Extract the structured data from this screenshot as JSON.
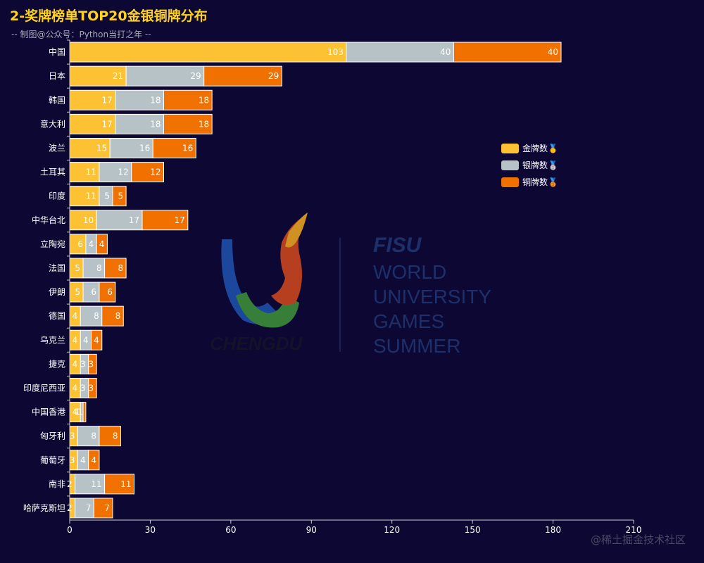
{
  "title": "2-奖牌榜单TOP20金银铜牌分布",
  "subtitle": "-- 制图@公众号：Python当打之年 --",
  "watermark_credit": "@稀土掘金技术社区",
  "background_logo": {
    "fisu": "FISU",
    "lines": [
      "WORLD",
      "UNIVERSITY",
      "GAMES",
      "SUMMER"
    ],
    "city": "CHENGDU"
  },
  "colors": {
    "gold": "#fcc233",
    "silver": "#b6c2c6",
    "bronze": "#f07000",
    "label_gold": "#ffffff"
  },
  "chart_data": {
    "type": "bar",
    "orientation": "horizontal",
    "stacked": true,
    "title": "2-奖牌榜单TOP20金银铜牌分布",
    "categories": [
      "中国",
      "日本",
      "韩国",
      "意大利",
      "波兰",
      "土耳其",
      "印度",
      "中华台北",
      "立陶宛",
      "法国",
      "伊朗",
      "德国",
      "乌克兰",
      "捷克",
      "印度尼西亚",
      "中国香港",
      "匈牙利",
      "葡萄牙",
      "南非",
      "哈萨克斯坦"
    ],
    "series": [
      {
        "name": "金牌数🥇",
        "values": [
          103,
          21,
          17,
          17,
          15,
          11,
          11,
          10,
          6,
          5,
          5,
          4,
          4,
          4,
          4,
          4,
          3,
          3,
          2,
          2
        ]
      },
      {
        "name": "银牌数🥈",
        "values": [
          40,
          29,
          18,
          18,
          16,
          12,
          5,
          17,
          4,
          8,
          6,
          8,
          4,
          3,
          3,
          1,
          8,
          4,
          11,
          7
        ]
      },
      {
        "name": "铜牌数🥉",
        "values": [
          40,
          29,
          18,
          18,
          16,
          12,
          5,
          17,
          4,
          8,
          6,
          8,
          4,
          3,
          3,
          1,
          8,
          4,
          11,
          7
        ]
      }
    ],
    "xlim": [
      0,
      210
    ],
    "xticks": [
      0,
      30,
      60,
      90,
      120,
      150,
      180,
      210
    ],
    "legend_position": "right"
  }
}
